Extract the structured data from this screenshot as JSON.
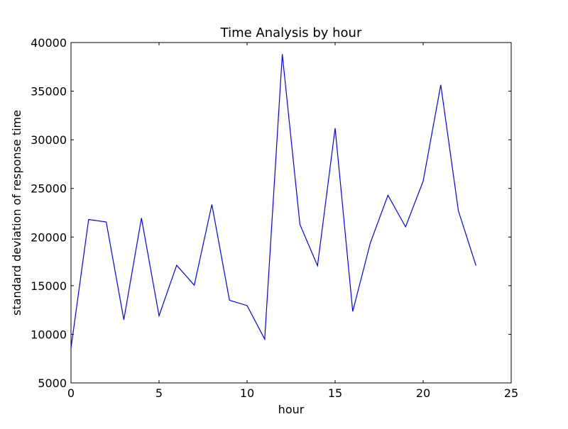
{
  "chart_data": {
    "type": "line",
    "title": "Time Analysis by hour",
    "xlabel": "hour",
    "ylabel": "standard deviation of response time",
    "xlim": [
      0,
      25
    ],
    "ylim": [
      5000,
      40000
    ],
    "xticks": [
      0,
      5,
      10,
      15,
      20,
      25
    ],
    "yticks": [
      5000,
      10000,
      15000,
      20000,
      25000,
      30000,
      35000,
      40000
    ],
    "grid": false,
    "series": [
      {
        "color": "#0000ff",
        "x": [
          0,
          1,
          2,
          3,
          4,
          5,
          6,
          7,
          8,
          9,
          10,
          11,
          12,
          13,
          14,
          15,
          16,
          17,
          18,
          19,
          20,
          21,
          22,
          23
        ],
        "values": [
          8600,
          21800,
          21550,
          11500,
          21950,
          11900,
          17100,
          15050,
          23350,
          13500,
          12950,
          9500,
          38800,
          21300,
          17050,
          31200,
          12350,
          19400,
          24300,
          21050,
          25750,
          35650,
          22700,
          17050
        ]
      }
    ]
  }
}
